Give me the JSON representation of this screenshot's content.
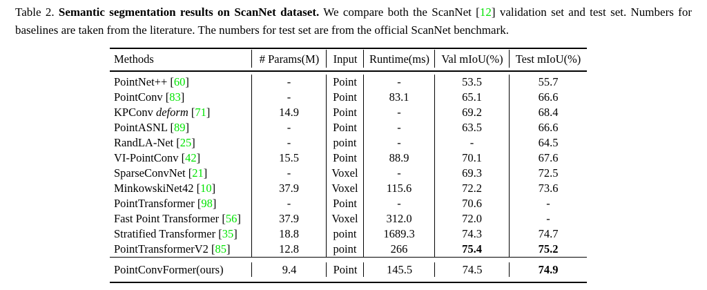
{
  "caption": {
    "label": "Table 2.",
    "line1_parts": [
      {
        "t": "Table 2. "
      },
      {
        "t": "Semantic segmentation results on ScanNet dataset.",
        "b": true
      },
      {
        "t": " We compare both the ScanNet "
      },
      {
        "t": "["
      },
      {
        "t": "12",
        "g": true
      },
      {
        "t": "] validation set and test set. Numbers for"
      }
    ],
    "line2": "baselines are taken from the literature. The numbers for test set are from the official ScanNet benchmark."
  },
  "table": {
    "headers": [
      "Methods",
      "# Params(M)",
      "Input",
      "Runtime(ms)",
      "Val mIoU(%)",
      "Test mIoU(%)"
    ],
    "rows": [
      {
        "method": "PointNet++",
        "italic": "",
        "cite": "60",
        "params": "-",
        "input": "Point",
        "runtime": "-",
        "val": "53.5",
        "test": "55.7",
        "val_bold": false,
        "test_bold": false
      },
      {
        "method": "PointConv",
        "italic": "",
        "cite": "83",
        "params": "-",
        "input": "Point",
        "runtime": "83.1",
        "val": "65.1",
        "test": "66.6",
        "val_bold": false,
        "test_bold": false
      },
      {
        "method": "KPConv",
        "italic": "deform",
        "cite": "71",
        "params": "14.9",
        "input": "Point",
        "runtime": "-",
        "val": "69.2",
        "test": "68.4",
        "val_bold": false,
        "test_bold": false
      },
      {
        "method": "PointASNL",
        "italic": "",
        "cite": "89",
        "params": "-",
        "input": "Point",
        "runtime": "-",
        "val": "63.5",
        "test": "66.6",
        "val_bold": false,
        "test_bold": false
      },
      {
        "method": "RandLA-Net",
        "italic": "",
        "cite": "25",
        "params": "-",
        "input": "point",
        "runtime": "-",
        "val": "-",
        "test": "64.5",
        "val_bold": false,
        "test_bold": false
      },
      {
        "method": "VI-PointConv",
        "italic": "",
        "cite": "42",
        "params": "15.5",
        "input": "Point",
        "runtime": "88.9",
        "val": "70.1",
        "test": "67.6",
        "val_bold": false,
        "test_bold": false
      },
      {
        "method": "SparseConvNet",
        "italic": "",
        "cite": "21",
        "params": "-",
        "input": "Voxel",
        "runtime": "-",
        "val": "69.3",
        "test": "72.5",
        "val_bold": false,
        "test_bold": false
      },
      {
        "method": "MinkowskiNet42",
        "italic": "",
        "cite": "10",
        "params": "37.9",
        "input": "Voxel",
        "runtime": "115.6",
        "val": "72.2",
        "test": "73.6",
        "val_bold": false,
        "test_bold": false
      },
      {
        "method": "PointTransformer",
        "italic": "",
        "cite": "98",
        "params": "-",
        "input": "Point",
        "runtime": "-",
        "val": "70.6",
        "test": "-",
        "val_bold": false,
        "test_bold": false
      },
      {
        "method": "Fast Point Transformer",
        "italic": "",
        "cite": "56",
        "params": "37.9",
        "input": "Voxel",
        "runtime": "312.0",
        "val": "72.0",
        "test": "-",
        "val_bold": false,
        "test_bold": false
      },
      {
        "method": "Stratified Transformer",
        "italic": "",
        "cite": "35",
        "params": "18.8",
        "input": "point",
        "runtime": "1689.3",
        "val": "74.3",
        "test": "74.7",
        "val_bold": false,
        "test_bold": false
      },
      {
        "method": "PointTransformerV2",
        "italic": "",
        "cite": "85",
        "params": "12.8",
        "input": "point",
        "runtime": "266",
        "val": "75.4",
        "test": "75.2",
        "val_bold": true,
        "test_bold": true
      }
    ],
    "ours_row": {
      "method": "PointConvFormer(ours)",
      "italic": "",
      "cite": "",
      "params": "9.4",
      "input": "Point",
      "runtime": "145.5",
      "val": "74.5",
      "test": "74.9",
      "val_bold": false,
      "test_bold": true
    }
  },
  "colors": {
    "citation_green": "#00e400",
    "text": "#000000",
    "background": "#ffffff"
  }
}
